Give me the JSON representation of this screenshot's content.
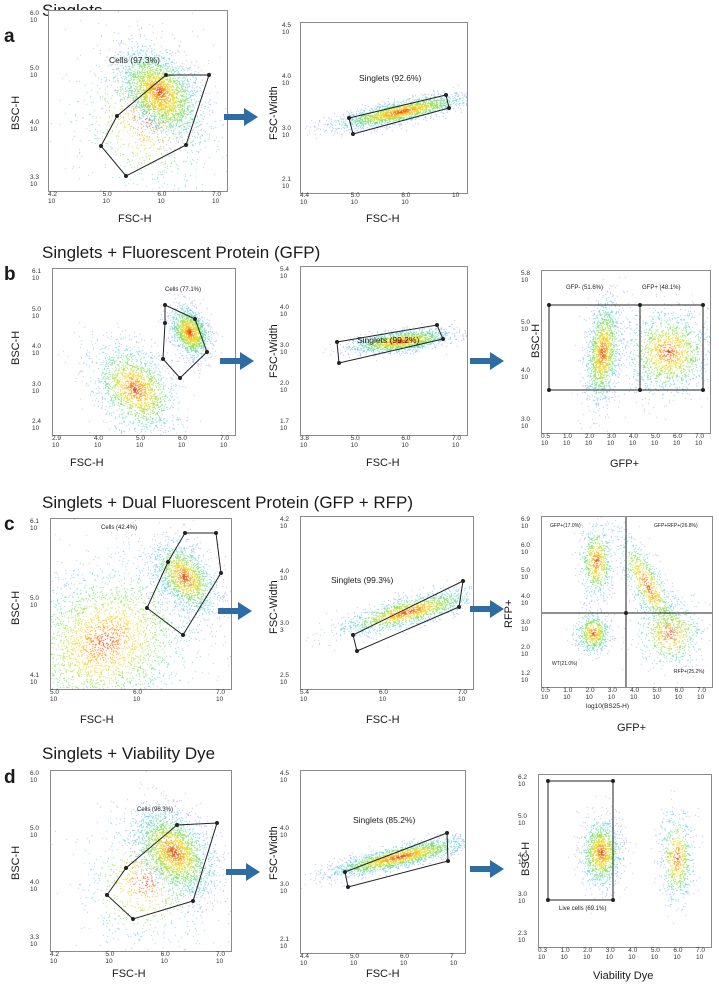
{
  "rows": [
    {
      "letter": "a",
      "title": "Singlets",
      "panels": [
        {
          "id": "a1",
          "xlabel": "FSC-H",
          "ylabel": "BSC-H",
          "xticks": [
            {
              "v": "4.2",
              "b": "10"
            },
            {
              "v": "5.0",
              "b": "10"
            },
            {
              "v": "6.0",
              "b": "10"
            },
            {
              "v": "7.0",
              "b": "10"
            }
          ],
          "yticks": [
            {
              "v": "6.0",
              "b": "10"
            },
            {
              "v": "5.0",
              "b": "10"
            },
            {
              "v": "4.0",
              "b": "10"
            },
            {
              "v": "3.3",
              "b": "10"
            }
          ],
          "gates": [
            {
              "label": "Cells (97.3%)"
            }
          ]
        },
        {
          "id": "a2",
          "xlabel": "FSC-H",
          "ylabel": "FSC-Width",
          "xticks": [
            {
              "v": "4.4",
              "b": "10"
            },
            {
              "v": "5.0",
              "b": "10"
            },
            {
              "v": "6.0",
              "b": "10"
            },
            {
              "v": "",
              "b": "10"
            }
          ],
          "yticks": [
            {
              "v": "4.5",
              "b": "10"
            },
            {
              "v": "4.0",
              "b": "10"
            },
            {
              "v": "3.0",
              "b": "10"
            },
            {
              "v": "2.1",
              "b": "10"
            }
          ],
          "gates": [
            {
              "label": "Singlets (92.6%)"
            }
          ]
        }
      ]
    },
    {
      "letter": "b",
      "title": "Singlets + Fluorescent Protein (GFP)",
      "panels": [
        {
          "id": "b1",
          "xlabel": "FSC-H",
          "ylabel": "BSC-H",
          "xticks": [
            {
              "v": "2.9",
              "b": "10"
            },
            {
              "v": "4.0",
              "b": "10"
            },
            {
              "v": "5.0",
              "b": "10"
            },
            {
              "v": "6.0",
              "b": "10"
            },
            {
              "v": "7.0",
              "b": "10"
            }
          ],
          "yticks": [
            {
              "v": "6.1",
              "b": "10"
            },
            {
              "v": "5.0",
              "b": "10"
            },
            {
              "v": "4.0",
              "b": "10"
            },
            {
              "v": "3.0",
              "b": "10"
            },
            {
              "v": "2.4",
              "b": "10"
            }
          ],
          "gates": [
            {
              "label": "Cells (77.1%)"
            }
          ]
        },
        {
          "id": "b2",
          "xlabel": "FSC-H",
          "ylabel": "FSC-Width",
          "xticks": [
            {
              "v": "3.8",
              "b": "10"
            },
            {
              "v": "5.0",
              "b": "10"
            },
            {
              "v": "6.0",
              "b": "10"
            },
            {
              "v": "7.0",
              "b": "10"
            }
          ],
          "yticks": [
            {
              "v": "5.4",
              "b": "10"
            },
            {
              "v": "4.0",
              "b": "10"
            },
            {
              "v": "3.0",
              "b": "10"
            },
            {
              "v": "2.0",
              "b": "10"
            },
            {
              "v": "1.7",
              "b": "10"
            }
          ],
          "gates": [
            {
              "label": "Singlets (99.2%)"
            }
          ]
        },
        {
          "id": "b3",
          "xlabel": "GFP+",
          "ylabel": "BSC-H",
          "xticks": [
            {
              "v": "0.5",
              "b": "10"
            },
            {
              "v": "1.0",
              "b": "10"
            },
            {
              "v": "2.0",
              "b": "10"
            },
            {
              "v": "3.0",
              "b": "10"
            },
            {
              "v": "4.0",
              "b": "10"
            },
            {
              "v": "5.0",
              "b": "10"
            },
            {
              "v": "6.0",
              "b": "10"
            },
            {
              "v": "7.0",
              "b": "10"
            }
          ],
          "yticks": [
            {
              "v": "5.8",
              "b": "10"
            },
            {
              "v": "5.0",
              "b": "10"
            },
            {
              "v": "4.0",
              "b": "10"
            },
            {
              "v": "3.0",
              "b": "10"
            }
          ],
          "gates": [
            {
              "label": "GFP- (51.6%)"
            },
            {
              "label": "GFP+ (48.1%)"
            }
          ]
        }
      ]
    },
    {
      "letter": "c",
      "title": "Singlets + Dual Fluorescent Protein (GFP + RFP)",
      "panels": [
        {
          "id": "c1",
          "xlabel": "FSC-H",
          "ylabel": "BSC-H",
          "xticks": [
            {
              "v": "5.0",
              "b": "10"
            },
            {
              "v": "6.0",
              "b": "10"
            },
            {
              "v": "7.0",
              "b": "10"
            }
          ],
          "yticks": [
            {
              "v": "6.1",
              "b": "10"
            },
            {
              "v": "5.0",
              "b": "10"
            },
            {
              "v": "4.1",
              "b": "10"
            }
          ],
          "gates": [
            {
              "label": "Cells (42.4%)"
            }
          ]
        },
        {
          "id": "c2",
          "xlabel": "FSC-H",
          "ylabel": "FSC-Width",
          "xticks": [
            {
              "v": "5.4",
              "b": "10"
            },
            {
              "v": "6.0",
              "b": "10"
            },
            {
              "v": "7.0",
              "b": "10"
            }
          ],
          "yticks": [
            {
              "v": "4.2",
              "b": "10"
            },
            {
              "v": "4.0",
              "b": "10"
            },
            {
              "v": "3.0",
              "b": "3"
            },
            {
              "v": "2.5",
              "b": "10"
            }
          ],
          "gates": [
            {
              "label": "Singlets (99.3%)"
            }
          ]
        },
        {
          "id": "c3",
          "xlabel": "GFP+",
          "ylabel": "RFP+",
          "inner_xlabel": "log10(BS25-H)",
          "xticks": [
            {
              "v": "0.5",
              "b": "10"
            },
            {
              "v": "1.0",
              "b": "10"
            },
            {
              "v": "2.0",
              "b": "10"
            },
            {
              "v": "3.0",
              "b": "10"
            },
            {
              "v": "4.0",
              "b": "10"
            },
            {
              "v": "5.0",
              "b": "10"
            },
            {
              "v": "6.0",
              "b": "10"
            },
            {
              "v": "7.0",
              "b": "10"
            }
          ],
          "yticks": [
            {
              "v": "6.9",
              "b": "10"
            },
            {
              "v": "6.0",
              "b": "10"
            },
            {
              "v": "5.0",
              "b": "10"
            },
            {
              "v": "4.0",
              "b": "10"
            },
            {
              "v": "3.0",
              "b": "10"
            },
            {
              "v": "2.0",
              "b": "10"
            },
            {
              "v": "1.2",
              "b": "10"
            }
          ],
          "gates": [
            {
              "label": "GFP+(17.0%)"
            },
            {
              "label": "GFP+RFP+(26.8%)"
            },
            {
              "label": "WT(21.0%)"
            },
            {
              "label": "RFP+(25.2%)"
            }
          ]
        }
      ]
    },
    {
      "letter": "d",
      "title": "Singlets + Viability Dye",
      "panels": [
        {
          "id": "d1",
          "xlabel": "FSC-H",
          "ylabel": "BSC-H",
          "xticks": [
            {
              "v": "4.2",
              "b": "10"
            },
            {
              "v": "5.0",
              "b": "10"
            },
            {
              "v": "6.0",
              "b": "10"
            },
            {
              "v": "7.0",
              "b": "10"
            }
          ],
          "yticks": [
            {
              "v": "6.0",
              "b": "10"
            },
            {
              "v": "5.0",
              "b": "10"
            },
            {
              "v": "4.0",
              "b": "10"
            },
            {
              "v": "3.3",
              "b": "10"
            }
          ],
          "gates": [
            {
              "label": "Cells (96.3%)"
            }
          ]
        },
        {
          "id": "d2",
          "xlabel": "FSC-H",
          "ylabel": "FSC-Width",
          "xticks": [
            {
              "v": "4.4",
              "b": "10"
            },
            {
              "v": "5.0",
              "b": "10"
            },
            {
              "v": "6.0",
              "b": "10"
            },
            {
              "v": "7",
              "b": "10"
            }
          ],
          "yticks": [
            {
              "v": "4.5",
              "b": "10"
            },
            {
              "v": "4.0",
              "b": "10"
            },
            {
              "v": "3.0",
              "b": "10"
            },
            {
              "v": "2.1",
              "b": "10"
            }
          ],
          "gates": [
            {
              "label": "Singlets (85.2%)"
            }
          ]
        },
        {
          "id": "d3",
          "xlabel": "Viability Dye",
          "ylabel": "BSC-H",
          "xticks": [
            {
              "v": "0.3",
              "b": "10"
            },
            {
              "v": "1.0",
              "b": "10"
            },
            {
              "v": "2.0",
              "b": "10"
            },
            {
              "v": "3.0",
              "b": "10"
            },
            {
              "v": "4.0",
              "b": "10"
            },
            {
              "v": "5.0",
              "b": "10"
            },
            {
              "v": "6.0",
              "b": "10"
            },
            {
              "v": "7.0",
              "b": "10"
            }
          ],
          "yticks": [
            {
              "v": "6.2",
              "b": "10"
            },
            {
              "v": "5.0",
              "b": "10"
            },
            {
              "v": "4.0",
              "b": "10"
            },
            {
              "v": "3.0",
              "b": "10"
            },
            {
              "v": "2.3",
              "b": "10"
            }
          ],
          "gates": [
            {
              "label": "Live cells (69.1%)"
            }
          ]
        }
      ]
    }
  ],
  "colors": {
    "arrow": "#2e6da4",
    "gate": "#222222",
    "axis_text": "#333333"
  },
  "icons": {
    "flow_arrow": "right-arrow-icon"
  }
}
